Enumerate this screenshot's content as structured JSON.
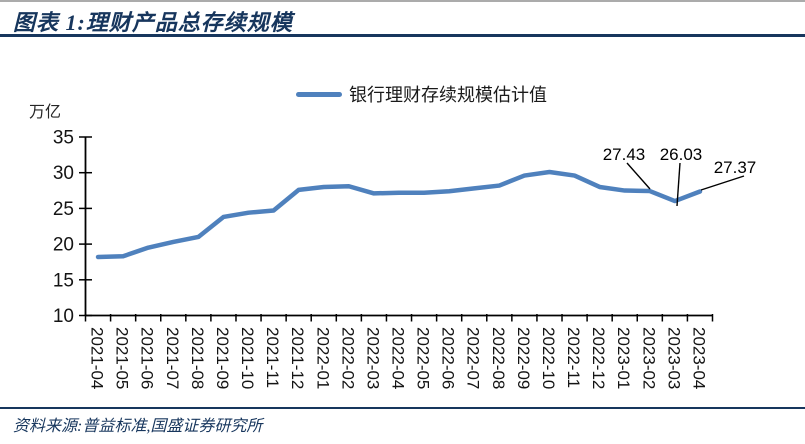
{
  "header": {
    "title": "图表 1:理财产品总存续规模"
  },
  "legend": {
    "label": "银行理财存续规模估计值"
  },
  "footer": {
    "source": "资料来源:普益标准,国盛证券研究所"
  },
  "colors": {
    "navy": "#17365D",
    "line_blue": "#4F81BD",
    "axis_black": "#000000",
    "top_border_gray": "#ABABAB"
  },
  "chart_data": {
    "type": "line",
    "title": "图表 1:理财产品总存续规模",
    "xlabel": "",
    "ylabel": "万亿",
    "unit_label": "万亿",
    "legend_entries": [
      "银行理财存续规模估计值"
    ],
    "legend_position": "top-center",
    "grid": false,
    "markers": false,
    "ylim": [
      10,
      35
    ],
    "yticks": [
      10,
      15,
      20,
      25,
      30,
      35
    ],
    "categories": [
      "2021-04",
      "2021-05",
      "2021-06",
      "2021-07",
      "2021-08",
      "2021-09",
      "2021-10",
      "2021-11",
      "2021-12",
      "2022-01",
      "2022-02",
      "2022-03",
      "2022-04",
      "2022-05",
      "2022-06",
      "2022-07",
      "2022-08",
      "2022-09",
      "2022-10",
      "2022-11",
      "2022-12",
      "2023-01",
      "2023-02",
      "2023-03",
      "2023-04"
    ],
    "series": [
      {
        "name": "银行理财存续规模估计值",
        "values": [
          18.2,
          18.3,
          19.5,
          20.3,
          21.0,
          23.8,
          24.4,
          24.7,
          27.6,
          28.0,
          28.1,
          27.1,
          27.2,
          27.2,
          27.4,
          27.8,
          28.2,
          29.6,
          30.1,
          29.6,
          28.0,
          27.5,
          27.43,
          26.03,
          27.37
        ]
      }
    ],
    "annotations": [
      {
        "category": "2023-02",
        "value": 27.43,
        "label": "27.43"
      },
      {
        "category": "2023-03",
        "value": 26.03,
        "label": "26.03"
      },
      {
        "category": "2023-04",
        "value": 27.37,
        "label": "27.37"
      }
    ]
  }
}
